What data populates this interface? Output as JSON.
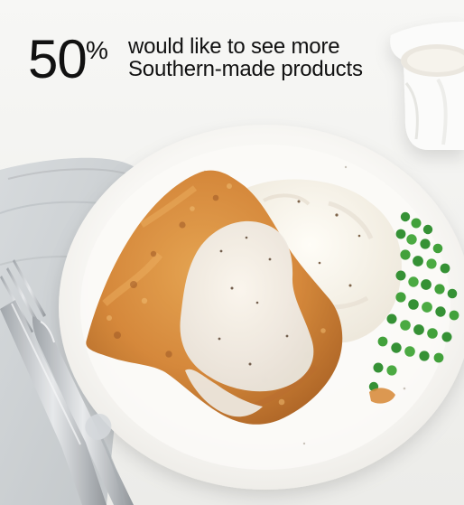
{
  "stat": {
    "number": "50",
    "symbol": "%",
    "caption_line1": "would like to see more",
    "caption_line2": "Southern-made products"
  },
  "colors": {
    "text": "#111111",
    "background": "#f4f4f2",
    "plate": "#ffffff",
    "fried_chicken": "#d98b3a",
    "gravy": "#eeeae2",
    "peas": "#2f8e2f"
  }
}
